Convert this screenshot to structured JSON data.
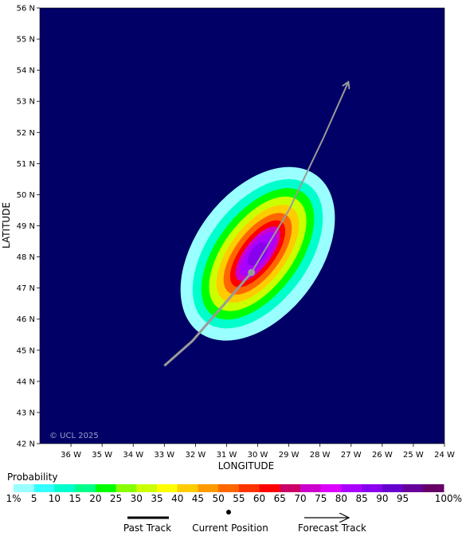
{
  "map": {
    "background_color": "#000066",
    "copyright": "© UCL 2025",
    "xlabel": "LONGITUDE",
    "ylabel": "LATITUDE",
    "lon_range": [
      -37,
      -24
    ],
    "lat_range": [
      42,
      56
    ],
    "lon_ticks": [
      {
        "value": -36,
        "label": "36 W"
      },
      {
        "value": -35,
        "label": "35 W"
      },
      {
        "value": -34,
        "label": "34 W"
      },
      {
        "value": -33,
        "label": "33 W"
      },
      {
        "value": -32,
        "label": "32 W"
      },
      {
        "value": -31,
        "label": "31 W"
      },
      {
        "value": -30,
        "label": "30 W"
      },
      {
        "value": -29,
        "label": "29 W"
      },
      {
        "value": -28,
        "label": "28 W"
      },
      {
        "value": -27,
        "label": "27 W"
      },
      {
        "value": -26,
        "label": "26 W"
      },
      {
        "value": -25,
        "label": "25 W"
      },
      {
        "value": -24,
        "label": "24 W"
      }
    ],
    "lat_ticks": [
      {
        "value": 42,
        "label": "42 N"
      },
      {
        "value": 43,
        "label": "43 N"
      },
      {
        "value": 44,
        "label": "44 N"
      },
      {
        "value": 45,
        "label": "45 N"
      },
      {
        "value": 46,
        "label": "46 N"
      },
      {
        "value": 47,
        "label": "47 N"
      },
      {
        "value": 48,
        "label": "48 N"
      },
      {
        "value": 49,
        "label": "49 N"
      },
      {
        "value": 50,
        "label": "50 N"
      },
      {
        "value": 51,
        "label": "51 N"
      },
      {
        "value": 52,
        "label": "52 N"
      },
      {
        "value": 53,
        "label": "53 N"
      },
      {
        "value": 54,
        "label": "54 N"
      },
      {
        "value": 55,
        "label": "55 N"
      },
      {
        "value": 56,
        "label": "56 N"
      }
    ],
    "track": {
      "color": "#9a9a9a",
      "past": [
        [
          -33.0,
          44.5
        ],
        [
          -32.1,
          45.3
        ],
        [
          -30.8,
          46.8
        ],
        [
          -30.2,
          47.5
        ]
      ],
      "forecast": [
        [
          -30.2,
          47.5
        ],
        [
          -29.0,
          49.5
        ],
        [
          -27.9,
          51.8
        ],
        [
          -27.1,
          53.6
        ]
      ],
      "current_position": [
        -30.2,
        47.5
      ]
    },
    "probability_field": {
      "center": [
        -30.0,
        48.1
      ],
      "axis_bearing_deg": 37,
      "levels": [
        {
          "p": 1,
          "semi_major": 3.15,
          "semi_minor": 2.0
        },
        {
          "p": 10,
          "semi_major": 2.75,
          "semi_minor": 1.6
        },
        {
          "p": 20,
          "semi_major": 2.45,
          "semi_minor": 1.32
        },
        {
          "p": 30,
          "semi_major": 2.15,
          "semi_minor": 1.1
        },
        {
          "p": 40,
          "semi_major": 1.85,
          "semi_minor": 0.9
        },
        {
          "p": 50,
          "semi_major": 1.55,
          "semi_minor": 0.72
        },
        {
          "p": 60,
          "semi_major": 1.28,
          "semi_minor": 0.55
        },
        {
          "p": 70,
          "semi_major": 1.05,
          "semi_minor": 0.42
        },
        {
          "p": 80,
          "semi_major": 0.85,
          "semi_minor": 0.32
        },
        {
          "p": 85,
          "semi_major": 0.45,
          "semi_minor": 0.22
        }
      ]
    }
  },
  "legend": {
    "title": "Probability",
    "bins": [
      {
        "color": "#99ffff"
      },
      {
        "color": "#33ffff"
      },
      {
        "color": "#00ffcc"
      },
      {
        "color": "#00ff88"
      },
      {
        "color": "#00ff00"
      },
      {
        "color": "#88ff00"
      },
      {
        "color": "#ccff00"
      },
      {
        "color": "#ffff00"
      },
      {
        "color": "#ffcc00"
      },
      {
        "color": "#ff9900"
      },
      {
        "color": "#ff6600"
      },
      {
        "color": "#ff3300"
      },
      {
        "color": "#ff0000"
      },
      {
        "color": "#cc0066"
      },
      {
        "color": "#cc00cc"
      },
      {
        "color": "#dd00ff"
      },
      {
        "color": "#aa00ff"
      },
      {
        "color": "#8800ee"
      },
      {
        "color": "#6600cc"
      },
      {
        "color": "#660099"
      },
      {
        "color": "#660066"
      }
    ],
    "labels": [
      "1%",
      "5",
      "10",
      "15",
      "20",
      "25",
      "30",
      "35",
      "40",
      "45",
      "50",
      "55",
      "60",
      "65",
      "70",
      "75",
      "80",
      "85",
      "90",
      "95",
      "100%"
    ],
    "past_track_label": "Past Track",
    "current_position_label": "Current Position",
    "forecast_track_label": "Forecast Track"
  }
}
